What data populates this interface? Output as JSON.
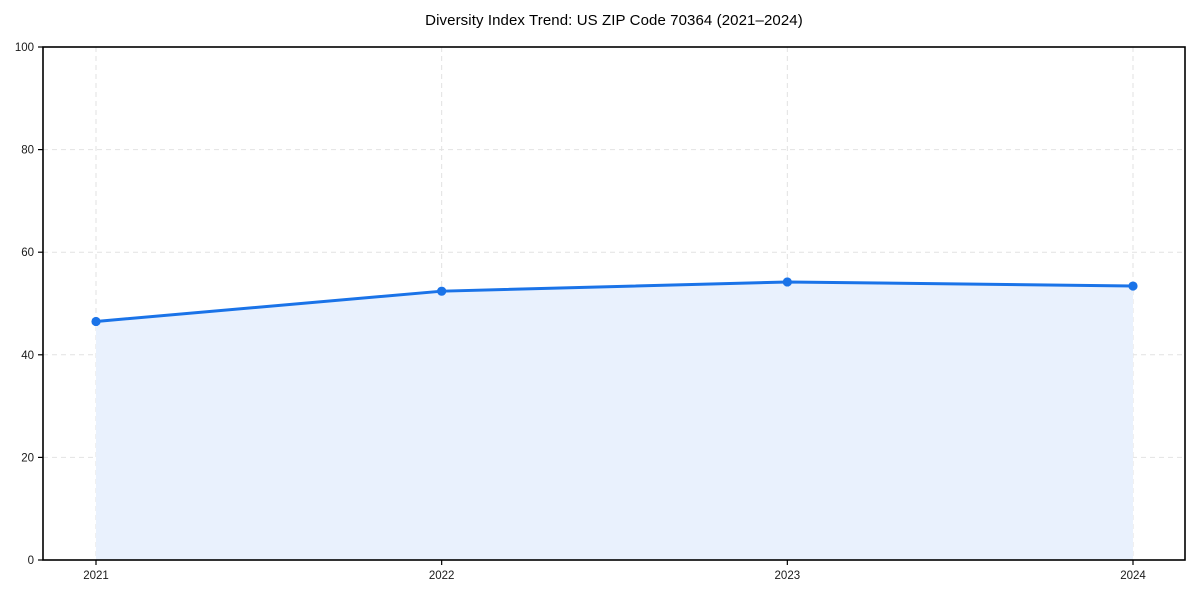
{
  "chart_data": {
    "type": "area",
    "title": "Diversity Index Trend: US ZIP Code 70364 (2021–2024)",
    "x": [
      2021,
      2022,
      2023,
      2024
    ],
    "series": [
      {
        "name": "Diversity Index",
        "values": [
          46.5,
          52.4,
          54.2,
          53.4
        ]
      }
    ],
    "xlabel": "",
    "ylabel": "",
    "ylim": [
      0,
      100
    ],
    "yticks": [
      0,
      20,
      40,
      60,
      80,
      100
    ],
    "grid": true,
    "grid_style": "dashed",
    "legend_position": "none",
    "colors": {
      "line": "#1a73e8",
      "marker": "#1a73e8",
      "area_fill": "#e9f1fd",
      "grid": "#e2e2e2",
      "axis": "#000000",
      "tick_label": "#1a1a1a",
      "title": "#000000",
      "background": "#ffffff"
    }
  }
}
